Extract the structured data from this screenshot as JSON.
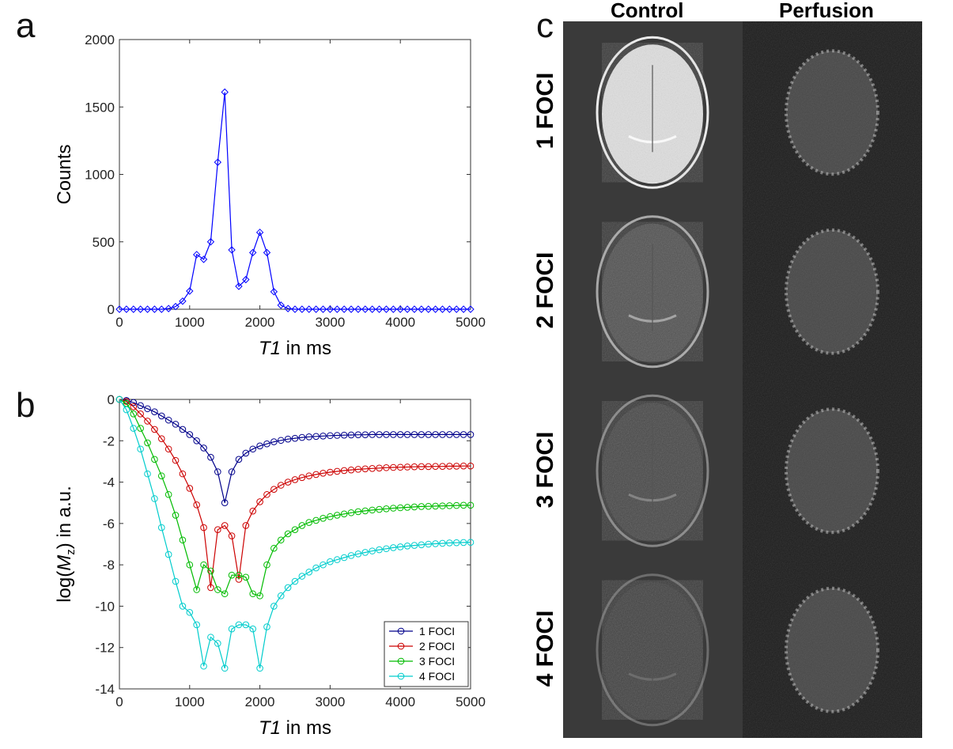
{
  "panel_labels": [
    "a",
    "b",
    "c"
  ],
  "images": {
    "columns": [
      "Control",
      "Perfusion"
    ],
    "rows": [
      "1 FOCI",
      "2 FOCI",
      "3 FOCI",
      "4 FOCI"
    ],
    "control_brightness": [
      1.0,
      0.62,
      0.42,
      0.28
    ]
  },
  "chart_data": [
    {
      "type": "line",
      "xlabel": "T1 in ms",
      "ylabel": "Counts",
      "xlim": [
        0,
        5000
      ],
      "ylim": [
        0,
        2000
      ],
      "xticks": [
        0,
        1000,
        2000,
        3000,
        4000,
        5000
      ],
      "yticks": [
        0,
        500,
        1000,
        1500,
        2000
      ],
      "grid": false,
      "series": [
        {
          "color": "#0000ff",
          "marker": "diamond",
          "x": [
            0,
            100,
            200,
            300,
            400,
            500,
            600,
            700,
            800,
            900,
            1000,
            1100,
            1200,
            1300,
            1400,
            1500,
            1600,
            1700,
            1800,
            1900,
            2000,
            2100,
            2200,
            2300,
            2400,
            2500,
            2600,
            2700,
            2800,
            2900,
            3000,
            3100,
            3200,
            3300,
            3400,
            3500,
            3600,
            3700,
            3800,
            3900,
            4000,
            4100,
            4200,
            4300,
            4400,
            4500,
            4600,
            4700,
            4800,
            4900,
            5000
          ],
          "y": [
            0,
            0,
            0,
            0,
            0,
            0,
            0,
            5,
            20,
            60,
            135,
            405,
            370,
            500,
            1090,
            1610,
            440,
            170,
            220,
            420,
            570,
            420,
            130,
            30,
            5,
            0,
            0,
            0,
            0,
            0,
            0,
            0,
            0,
            0,
            0,
            0,
            0,
            0,
            0,
            0,
            0,
            0,
            0,
            0,
            0,
            0,
            0,
            0,
            0,
            0,
            0
          ]
        }
      ]
    },
    {
      "type": "line",
      "xlabel": "T1 in ms",
      "ylabel": "log(Mz) in a.u.",
      "xlim": [
        0,
        5000
      ],
      "ylim": [
        -14,
        0
      ],
      "xticks": [
        0,
        1000,
        2000,
        3000,
        4000,
        5000
      ],
      "yticks": [
        -14,
        -12,
        -10,
        -8,
        -6,
        -4,
        -2,
        0
      ],
      "grid": false,
      "legend": "bottom-right",
      "series": [
        {
          "name": "1 FOCI",
          "color": "#00008b",
          "x": [
            0,
            100,
            200,
            300,
            400,
            500,
            600,
            700,
            800,
            900,
            1000,
            1100,
            1200,
            1300,
            1400,
            1500,
            1600,
            1700,
            1800,
            1900,
            2000,
            2100,
            2200,
            2300,
            2400,
            2500,
            2600,
            2700,
            2800,
            2900,
            3000,
            3100,
            3200,
            3300,
            3400,
            3500,
            3600,
            3700,
            3800,
            3900,
            4000,
            4100,
            4200,
            4300,
            4400,
            4500,
            4600,
            4700,
            4800,
            4900,
            5000
          ],
          "y": [
            0,
            -0.05,
            -0.15,
            -0.3,
            -0.45,
            -0.6,
            -0.8,
            -1.0,
            -1.2,
            -1.45,
            -1.7,
            -2.0,
            -2.35,
            -2.8,
            -3.5,
            -5.0,
            -3.5,
            -2.9,
            -2.6,
            -2.4,
            -2.25,
            -2.15,
            -2.05,
            -1.98,
            -1.92,
            -1.88,
            -1.84,
            -1.81,
            -1.79,
            -1.77,
            -1.75,
            -1.74,
            -1.73,
            -1.72,
            -1.71,
            -1.71,
            -1.7,
            -1.7,
            -1.7,
            -1.7,
            -1.7,
            -1.7,
            -1.7,
            -1.7,
            -1.7,
            -1.7,
            -1.7,
            -1.7,
            -1.7,
            -1.7,
            -1.7
          ]
        },
        {
          "name": "2 FOCI",
          "color": "#cc0000",
          "x": [
            0,
            100,
            200,
            300,
            400,
            500,
            600,
            700,
            800,
            900,
            1000,
            1100,
            1200,
            1300,
            1400,
            1500,
            1600,
            1700,
            1800,
            1900,
            2000,
            2100,
            2200,
            2300,
            2400,
            2500,
            2600,
            2700,
            2800,
            2900,
            3000,
            3100,
            3200,
            3300,
            3400,
            3500,
            3600,
            3700,
            3800,
            3900,
            4000,
            4100,
            4200,
            4300,
            4400,
            4500,
            4600,
            4700,
            4800,
            4900,
            5000
          ],
          "y": [
            0,
            -0.1,
            -0.35,
            -0.7,
            -1.05,
            -1.45,
            -1.9,
            -2.4,
            -2.95,
            -3.6,
            -4.3,
            -5.1,
            -6.2,
            -9.1,
            -6.3,
            -6.1,
            -6.6,
            -8.7,
            -6.1,
            -5.4,
            -4.95,
            -4.6,
            -4.35,
            -4.15,
            -4.0,
            -3.88,
            -3.78,
            -3.7,
            -3.63,
            -3.57,
            -3.52,
            -3.48,
            -3.44,
            -3.41,
            -3.38,
            -3.36,
            -3.34,
            -3.32,
            -3.3,
            -3.29,
            -3.28,
            -3.27,
            -3.26,
            -3.25,
            -3.25,
            -3.24,
            -3.24,
            -3.23,
            -3.23,
            -3.22,
            -3.22
          ]
        },
        {
          "name": "3 FOCI",
          "color": "#00bb00",
          "x": [
            0,
            100,
            200,
            300,
            400,
            500,
            600,
            700,
            800,
            900,
            1000,
            1100,
            1200,
            1300,
            1400,
            1500,
            1600,
            1700,
            1800,
            1900,
            2000,
            2100,
            2200,
            2300,
            2400,
            2500,
            2600,
            2700,
            2800,
            2900,
            3000,
            3100,
            3200,
            3300,
            3400,
            3500,
            3600,
            3700,
            3800,
            3900,
            4000,
            4100,
            4200,
            4300,
            4400,
            4500,
            4600,
            4700,
            4800,
            4900,
            5000
          ],
          "y": [
            0,
            -0.2,
            -0.7,
            -1.4,
            -2.1,
            -2.9,
            -3.7,
            -4.6,
            -5.6,
            -6.8,
            -8.0,
            -9.2,
            -8.0,
            -8.3,
            -9.2,
            -9.4,
            -8.5,
            -8.5,
            -8.6,
            -9.4,
            -9.5,
            -8.0,
            -7.2,
            -6.8,
            -6.5,
            -6.3,
            -6.1,
            -5.95,
            -5.85,
            -5.75,
            -5.67,
            -5.6,
            -5.54,
            -5.48,
            -5.43,
            -5.39,
            -5.35,
            -5.32,
            -5.29,
            -5.26,
            -5.24,
            -5.22,
            -5.2,
            -5.18,
            -5.17,
            -5.16,
            -5.15,
            -5.14,
            -5.13,
            -5.12,
            -5.12
          ]
        },
        {
          "name": "4 FOCI",
          "color": "#00cccc",
          "x": [
            0,
            100,
            200,
            300,
            400,
            500,
            600,
            700,
            800,
            900,
            1000,
            1100,
            1200,
            1300,
            1400,
            1500,
            1600,
            1700,
            1800,
            1900,
            2000,
            2100,
            2200,
            2300,
            2400,
            2500,
            2600,
            2700,
            2800,
            2900,
            3000,
            3100,
            3200,
            3300,
            3400,
            3500,
            3600,
            3700,
            3800,
            3900,
            4000,
            4100,
            4200,
            4300,
            4400,
            4500,
            4600,
            4700,
            4800,
            4900,
            5000
          ],
          "y": [
            0,
            -0.5,
            -1.4,
            -2.4,
            -3.6,
            -4.8,
            -6.2,
            -7.5,
            -8.8,
            -10.0,
            -10.3,
            -10.9,
            -12.9,
            -11.5,
            -11.8,
            -13.0,
            -11.1,
            -10.9,
            -10.9,
            -11.1,
            -13.0,
            -11.0,
            -10.0,
            -9.5,
            -9.1,
            -8.8,
            -8.55,
            -8.35,
            -8.15,
            -8.0,
            -7.85,
            -7.75,
            -7.65,
            -7.55,
            -7.47,
            -7.4,
            -7.33,
            -7.27,
            -7.22,
            -7.17,
            -7.13,
            -7.09,
            -7.06,
            -7.03,
            -7.0,
            -6.98,
            -6.96,
            -6.94,
            -6.93,
            -6.92,
            -6.91
          ]
        }
      ]
    }
  ]
}
